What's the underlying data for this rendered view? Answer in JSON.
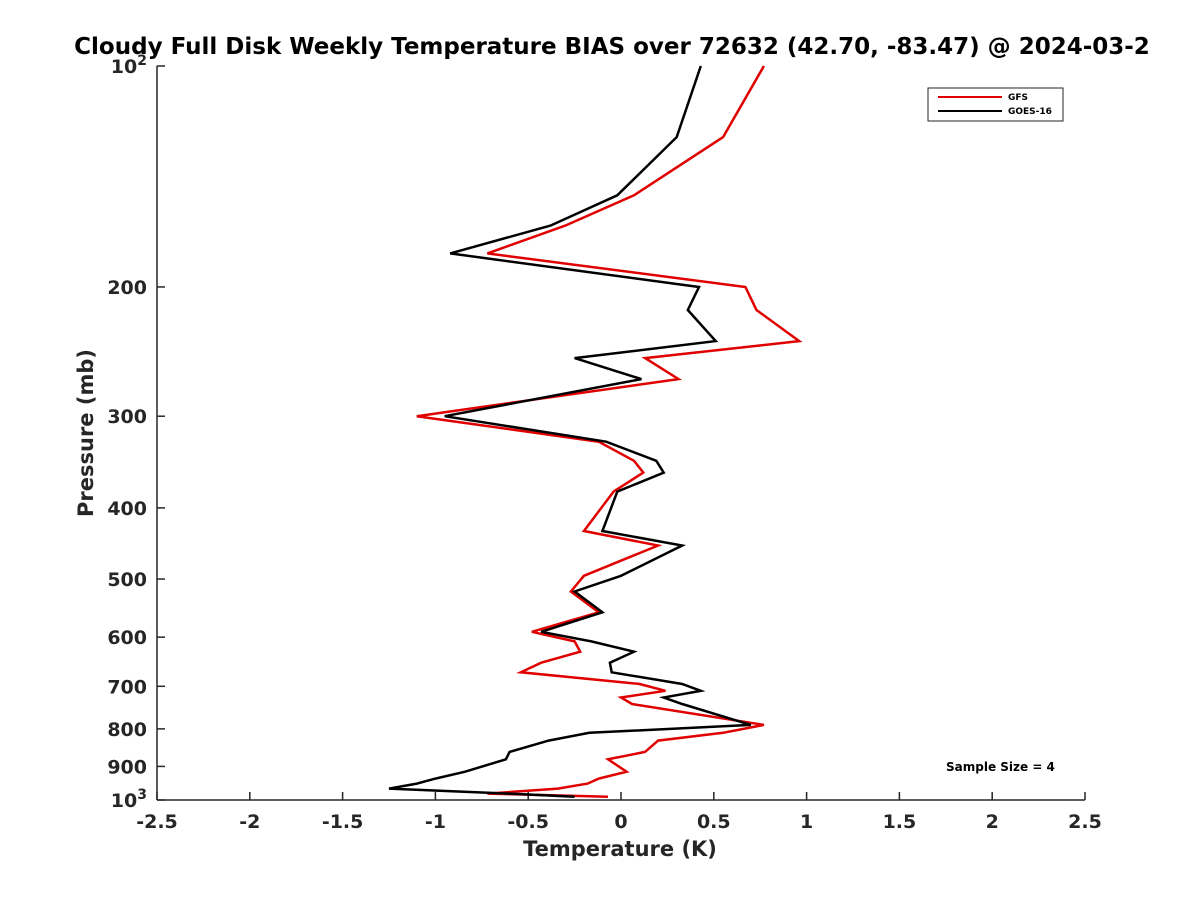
{
  "chart_data": {
    "type": "line",
    "title": "Cloudy Full Disk Weekly Temperature BIAS over 72632 (42.70, -83.47) @ 2024-03-2",
    "xlabel": "Temperature (K)",
    "ylabel": "Pressure (mb)",
    "xlim": [
      -2.5,
      2.5
    ],
    "ylim": [
      1000,
      100
    ],
    "y_scale": "log",
    "y_reversed": true,
    "x_ticks": [
      "-2.5",
      "-2",
      "-1.5",
      "-1",
      "-0.5",
      "0",
      "0.5",
      "1",
      "1.5",
      "2",
      "2.5"
    ],
    "y_ticks": [
      {
        "value": 100,
        "base": "10",
        "exp": "2"
      },
      {
        "value": 200,
        "label": "200"
      },
      {
        "value": 300,
        "label": "300"
      },
      {
        "value": 400,
        "label": "400"
      },
      {
        "value": 500,
        "label": "500"
      },
      {
        "value": 600,
        "label": "600"
      },
      {
        "value": 700,
        "label": "700"
      },
      {
        "value": 800,
        "label": "800"
      },
      {
        "value": 900,
        "label": "900"
      },
      {
        "value": 1000,
        "base": "10",
        "exp": "3"
      }
    ],
    "grid": false,
    "legend_position": "top-right",
    "annotation": "Sample Size = 4",
    "series": [
      {
        "name": "GFS",
        "color": "#e00000",
        "points": [
          [
            0.77,
            100
          ],
          [
            0.55,
            125
          ],
          [
            0.07,
            150
          ],
          [
            -0.3,
            165
          ],
          [
            -0.72,
            180
          ],
          [
            0.67,
            200
          ],
          [
            0.73,
            215
          ],
          [
            0.96,
            237
          ],
          [
            0.13,
            250
          ],
          [
            0.31,
            267
          ],
          [
            -1.1,
            300
          ],
          [
            -0.12,
            325
          ],
          [
            0.07,
            345
          ],
          [
            0.12,
            358
          ],
          [
            -0.04,
            380
          ],
          [
            -0.2,
            430
          ],
          [
            0.2,
            450
          ],
          [
            -0.2,
            495
          ],
          [
            -0.27,
            520
          ],
          [
            -0.12,
            555
          ],
          [
            -0.48,
            590
          ],
          [
            -0.25,
            608
          ],
          [
            -0.22,
            628
          ],
          [
            -0.43,
            650
          ],
          [
            -0.54,
            670
          ],
          [
            0.1,
            695
          ],
          [
            0.24,
            710
          ],
          [
            0.0,
            725
          ],
          [
            0.06,
            740
          ],
          [
            0.77,
            790
          ],
          [
            0.55,
            810
          ],
          [
            0.2,
            830
          ],
          [
            0.13,
            860
          ],
          [
            -0.07,
            880
          ],
          [
            0.03,
            915
          ],
          [
            -0.12,
            935
          ],
          [
            -0.18,
            950
          ],
          [
            -0.34,
            965
          ],
          [
            -0.72,
            980
          ],
          [
            -0.07,
            990
          ]
        ]
      },
      {
        "name": "GOES-16",
        "color": "#000000",
        "points": [
          [
            0.43,
            100
          ],
          [
            0.3,
            125
          ],
          [
            -0.02,
            150
          ],
          [
            -0.38,
            165
          ],
          [
            -0.92,
            180
          ],
          [
            0.42,
            200
          ],
          [
            0.36,
            215
          ],
          [
            0.51,
            237
          ],
          [
            -0.25,
            250
          ],
          [
            0.11,
            267
          ],
          [
            -0.95,
            300
          ],
          [
            -0.08,
            325
          ],
          [
            0.19,
            345
          ],
          [
            0.23,
            358
          ],
          [
            -0.02,
            380
          ],
          [
            -0.1,
            430
          ],
          [
            0.33,
            450
          ],
          [
            0.0,
            495
          ],
          [
            -0.25,
            520
          ],
          [
            -0.1,
            555
          ],
          [
            -0.43,
            590
          ],
          [
            -0.16,
            608
          ],
          [
            0.07,
            628
          ],
          [
            -0.06,
            650
          ],
          [
            -0.05,
            670
          ],
          [
            0.33,
            695
          ],
          [
            0.43,
            710
          ],
          [
            0.23,
            725
          ],
          [
            0.33,
            740
          ],
          [
            0.7,
            790
          ],
          [
            -0.17,
            810
          ],
          [
            -0.39,
            830
          ],
          [
            -0.6,
            860
          ],
          [
            -0.62,
            880
          ],
          [
            -0.84,
            915
          ],
          [
            -1.0,
            935
          ],
          [
            -1.1,
            950
          ],
          [
            -1.25,
            965
          ],
          [
            -0.6,
            980
          ],
          [
            -0.25,
            990
          ]
        ]
      }
    ]
  }
}
